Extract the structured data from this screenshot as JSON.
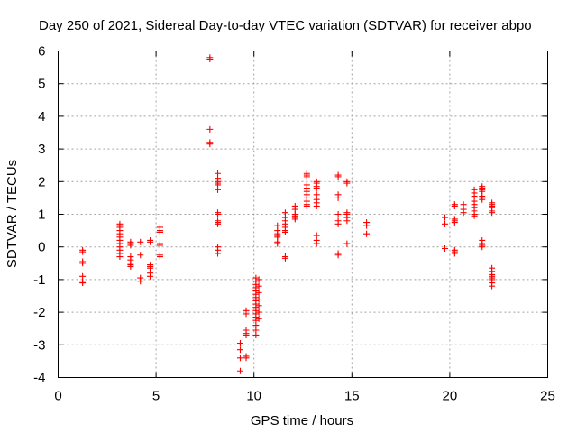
{
  "chart_data": {
    "type": "scatter",
    "title": "Day 250 of 2021, Sidereal Day-to-day VTEC variation (SDTVAR) for receiver abpo",
    "xlabel": "GPS time / hours",
    "ylabel": "SDTVAR / TECUs",
    "xlim": [
      0,
      25
    ],
    "ylim": [
      -4,
      6
    ],
    "xticks": [
      0,
      5,
      10,
      15,
      20,
      25
    ],
    "yticks": [
      -4,
      -3,
      -2,
      -1,
      0,
      1,
      2,
      3,
      4,
      5,
      6
    ],
    "xtick_labels": [
      "0",
      "5",
      "10",
      "15",
      "20",
      "25"
    ],
    "ytick_labels": [
      "-4",
      "-3",
      "-2",
      "-1",
      "0",
      "1",
      "2",
      "3",
      "4",
      "5",
      "6"
    ],
    "grid": true,
    "marker": "+",
    "color": "#ff0000",
    "series": [
      {
        "name": "SDTVAR",
        "points": [
          [
            1.25,
            -0.1
          ],
          [
            1.25,
            -0.15
          ],
          [
            1.25,
            -0.45
          ],
          [
            1.25,
            -0.5
          ],
          [
            1.25,
            -0.9
          ],
          [
            1.25,
            -1.05
          ],
          [
            1.25,
            -1.1
          ],
          [
            3.15,
            0.7
          ],
          [
            3.15,
            0.65
          ],
          [
            3.15,
            0.6
          ],
          [
            3.15,
            0.5
          ],
          [
            3.15,
            0.4
          ],
          [
            3.15,
            0.3
          ],
          [
            3.15,
            0.2
          ],
          [
            3.15,
            0.1
          ],
          [
            3.15,
            0.0
          ],
          [
            3.15,
            -0.1
          ],
          [
            3.15,
            -0.2
          ],
          [
            3.15,
            -0.3
          ],
          [
            3.7,
            0.15
          ],
          [
            3.7,
            0.1
          ],
          [
            3.7,
            0.05
          ],
          [
            3.7,
            -0.3
          ],
          [
            3.7,
            -0.4
          ],
          [
            3.7,
            -0.5
          ],
          [
            3.7,
            -0.55
          ],
          [
            3.7,
            -0.6
          ],
          [
            4.2,
            0.15
          ],
          [
            4.2,
            -0.25
          ],
          [
            4.2,
            -0.95
          ],
          [
            4.2,
            -1.05
          ],
          [
            4.7,
            0.2
          ],
          [
            4.7,
            0.15
          ],
          [
            4.7,
            -0.55
          ],
          [
            4.7,
            -0.6
          ],
          [
            4.7,
            -0.65
          ],
          [
            4.7,
            -0.8
          ],
          [
            4.7,
            -0.9
          ],
          [
            5.2,
            0.6
          ],
          [
            5.2,
            0.5
          ],
          [
            5.2,
            0.45
          ],
          [
            5.2,
            0.1
          ],
          [
            5.2,
            0.05
          ],
          [
            5.2,
            -0.25
          ],
          [
            5.2,
            -0.3
          ],
          [
            7.75,
            5.8
          ],
          [
            7.75,
            5.75
          ],
          [
            7.75,
            3.6
          ],
          [
            7.75,
            3.2
          ],
          [
            7.75,
            3.15
          ],
          [
            8.15,
            2.25
          ],
          [
            8.15,
            2.1
          ],
          [
            8.15,
            2.0
          ],
          [
            8.15,
            1.95
          ],
          [
            8.15,
            1.9
          ],
          [
            8.15,
            1.75
          ],
          [
            8.15,
            1.05
          ],
          [
            8.15,
            1.0
          ],
          [
            8.15,
            0.8
          ],
          [
            8.15,
            0.75
          ],
          [
            8.15,
            0.7
          ],
          [
            8.15,
            0.0
          ],
          [
            8.15,
            -0.1
          ],
          [
            8.15,
            -0.2
          ],
          [
            9.3,
            -2.95
          ],
          [
            9.3,
            -3.15
          ],
          [
            9.3,
            -3.4
          ],
          [
            9.3,
            -3.8
          ],
          [
            9.6,
            -1.95
          ],
          [
            9.6,
            -2.05
          ],
          [
            9.6,
            -2.55
          ],
          [
            9.6,
            -2.65
          ],
          [
            9.6,
            -2.7
          ],
          [
            9.6,
            -3.35
          ],
          [
            9.6,
            -3.4
          ],
          [
            10.1,
            -0.95
          ],
          [
            10.1,
            -1.05
          ],
          [
            10.1,
            -1.15
          ],
          [
            10.1,
            -1.25
          ],
          [
            10.1,
            -1.35
          ],
          [
            10.1,
            -1.45
          ],
          [
            10.1,
            -1.55
          ],
          [
            10.1,
            -1.65
          ],
          [
            10.1,
            -1.75
          ],
          [
            10.1,
            -1.85
          ],
          [
            10.1,
            -1.95
          ],
          [
            10.1,
            -2.05
          ],
          [
            10.1,
            -2.15
          ],
          [
            10.1,
            -2.25
          ],
          [
            10.1,
            -2.4
          ],
          [
            10.1,
            -2.55
          ],
          [
            10.1,
            -2.7
          ],
          [
            10.25,
            -1.0
          ],
          [
            10.25,
            -1.2
          ],
          [
            10.25,
            -1.4
          ],
          [
            10.25,
            -1.6
          ],
          [
            10.25,
            -1.8
          ],
          [
            10.25,
            -2.0
          ],
          [
            10.25,
            -2.2
          ],
          [
            11.2,
            0.65
          ],
          [
            11.2,
            0.5
          ],
          [
            11.2,
            0.4
          ],
          [
            11.2,
            0.35
          ],
          [
            11.2,
            0.3
          ],
          [
            11.2,
            0.15
          ],
          [
            11.2,
            0.1
          ],
          [
            11.6,
            1.05
          ],
          [
            11.6,
            0.9
          ],
          [
            11.6,
            0.8
          ],
          [
            11.6,
            0.7
          ],
          [
            11.6,
            0.6
          ],
          [
            11.6,
            0.5
          ],
          [
            11.6,
            0.45
          ],
          [
            11.6,
            -0.3
          ],
          [
            11.6,
            -0.35
          ],
          [
            12.1,
            1.25
          ],
          [
            12.1,
            1.15
          ],
          [
            12.1,
            1.0
          ],
          [
            12.1,
            0.95
          ],
          [
            12.1,
            0.9
          ],
          [
            12.1,
            0.85
          ],
          [
            12.7,
            2.25
          ],
          [
            12.7,
            2.2
          ],
          [
            12.7,
            2.15
          ],
          [
            12.7,
            1.9
          ],
          [
            12.7,
            1.8
          ],
          [
            12.7,
            1.7
          ],
          [
            12.7,
            1.6
          ],
          [
            12.7,
            1.5
          ],
          [
            12.7,
            1.4
          ],
          [
            12.7,
            1.3
          ],
          [
            12.7,
            1.25
          ],
          [
            13.2,
            2.0
          ],
          [
            13.2,
            1.95
          ],
          [
            13.2,
            1.85
          ],
          [
            13.2,
            1.8
          ],
          [
            13.2,
            1.6
          ],
          [
            13.2,
            1.45
          ],
          [
            13.2,
            1.35
          ],
          [
            13.2,
            1.25
          ],
          [
            13.2,
            0.35
          ],
          [
            13.2,
            0.2
          ],
          [
            13.2,
            0.1
          ],
          [
            14.3,
            2.2
          ],
          [
            14.3,
            2.15
          ],
          [
            14.3,
            1.6
          ],
          [
            14.3,
            1.5
          ],
          [
            14.3,
            1.0
          ],
          [
            14.3,
            0.8
          ],
          [
            14.3,
            0.7
          ],
          [
            14.3,
            -0.2
          ],
          [
            14.3,
            -0.25
          ],
          [
            14.75,
            2.0
          ],
          [
            14.75,
            1.95
          ],
          [
            14.75,
            1.05
          ],
          [
            14.75,
            1.0
          ],
          [
            14.75,
            0.9
          ],
          [
            14.75,
            0.8
          ],
          [
            14.75,
            0.1
          ],
          [
            15.75,
            0.75
          ],
          [
            15.75,
            0.65
          ],
          [
            15.75,
            0.4
          ],
          [
            19.75,
            0.9
          ],
          [
            19.75,
            0.7
          ],
          [
            19.75,
            -0.05
          ],
          [
            20.25,
            1.3
          ],
          [
            20.25,
            1.25
          ],
          [
            20.25,
            0.85
          ],
          [
            20.25,
            0.8
          ],
          [
            20.25,
            0.75
          ],
          [
            20.25,
            -0.1
          ],
          [
            20.25,
            -0.15
          ],
          [
            20.25,
            -0.2
          ],
          [
            20.7,
            1.3
          ],
          [
            20.7,
            1.15
          ],
          [
            20.7,
            1.05
          ],
          [
            21.25,
            1.75
          ],
          [
            21.25,
            1.65
          ],
          [
            21.25,
            1.55
          ],
          [
            21.25,
            1.4
          ],
          [
            21.25,
            1.3
          ],
          [
            21.25,
            1.2
          ],
          [
            21.25,
            1.1
          ],
          [
            21.25,
            1.0
          ],
          [
            21.25,
            0.95
          ],
          [
            21.65,
            1.85
          ],
          [
            21.65,
            1.8
          ],
          [
            21.65,
            1.75
          ],
          [
            21.65,
            1.7
          ],
          [
            21.65,
            1.55
          ],
          [
            21.65,
            1.5
          ],
          [
            21.65,
            1.45
          ],
          [
            21.65,
            0.2
          ],
          [
            21.65,
            0.1
          ],
          [
            21.65,
            0.05
          ],
          [
            21.65,
            0.0
          ],
          [
            22.15,
            1.35
          ],
          [
            22.15,
            1.3
          ],
          [
            22.15,
            1.25
          ],
          [
            22.15,
            1.2
          ],
          [
            22.15,
            1.1
          ],
          [
            22.15,
            1.05
          ],
          [
            22.15,
            -0.65
          ],
          [
            22.15,
            -0.75
          ],
          [
            22.15,
            -0.85
          ],
          [
            22.15,
            -0.9
          ],
          [
            22.15,
            -0.95
          ],
          [
            22.15,
            -1.0
          ],
          [
            22.15,
            -1.1
          ],
          [
            22.15,
            -1.2
          ]
        ]
      }
    ]
  }
}
